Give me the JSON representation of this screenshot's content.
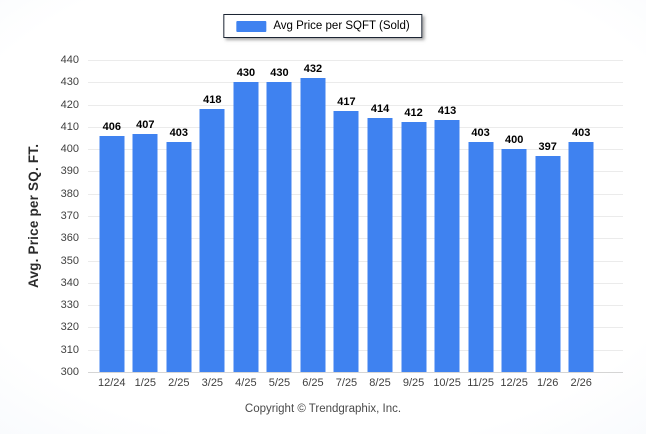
{
  "legend": {
    "label": "Avg Price per SQFT (Sold)"
  },
  "footer": {
    "copyright": "Copyright © Trendgraphix, Inc."
  },
  "colors": {
    "bar": "#3f82f0",
    "legend_border": "#1c2533",
    "gridline": "#ebebeb"
  },
  "chart_data": {
    "type": "bar",
    "title": "",
    "series_name": "Avg Price per SQFT (Sold)",
    "categories": [
      "12/24",
      "1/25",
      "2/25",
      "3/25",
      "4/25",
      "5/25",
      "6/25",
      "7/25",
      "8/25",
      "9/25",
      "10/25",
      "11/25",
      "12/25",
      "1/26",
      "2/26"
    ],
    "values": [
      406,
      407,
      403,
      418,
      430,
      430,
      432,
      417,
      414,
      412,
      413,
      403,
      400,
      397,
      403
    ],
    "xlabel": "",
    "ylabel": "Avg. Price per SQ. FT.",
    "ylim": [
      300,
      440
    ],
    "ytick_step": 10,
    "yticks": [
      300,
      310,
      320,
      330,
      340,
      350,
      360,
      370,
      380,
      390,
      400,
      410,
      420,
      430,
      440
    ],
    "grid": true,
    "legend_position": "top-center",
    "bar_color": "#3f82f0"
  }
}
